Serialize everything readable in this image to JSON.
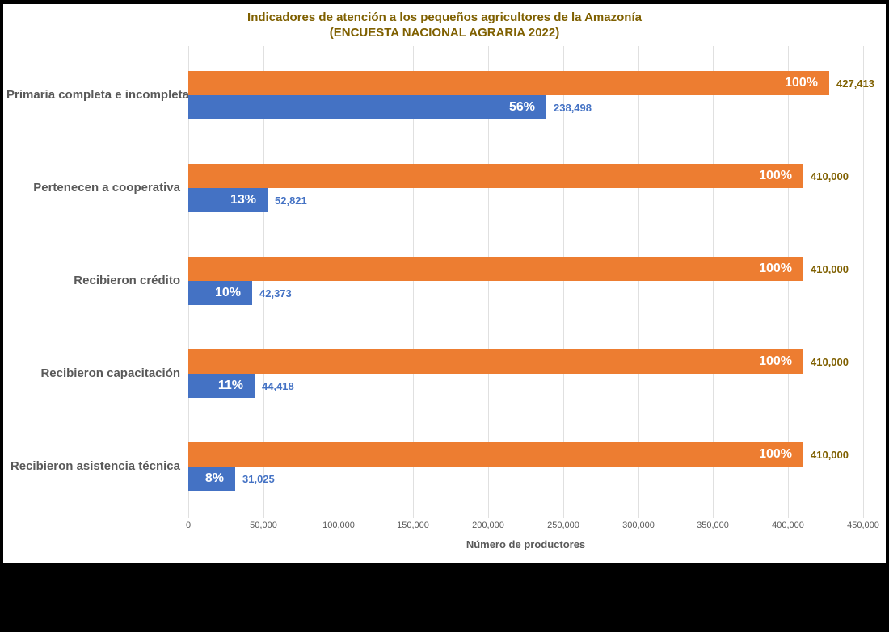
{
  "title": {
    "line1": "Indicadores de atención a los pequeños agricultores de la Amazonía",
    "line2": "(ENCUESTA NACIONAL AGRARIA 2022)"
  },
  "x_axis": {
    "label": "Número de productores",
    "tick_labels": [
      "0",
      "50,000",
      "100,000",
      "150,000",
      "200,000",
      "250,000",
      "300,000",
      "350,000",
      "400,000",
      "450,000"
    ]
  },
  "colors": {
    "background": "#000000",
    "panel": "#FFFFFF",
    "orange_bar": "#ED7D31",
    "blue_bar": "#4472C4",
    "title_text": "#7F6000",
    "orange_value_text": "#7F6000",
    "blue_value_text": "#4472C4",
    "category_text": "#595959",
    "axis_text": "#595959",
    "gridline": "#E0E0E0",
    "percent_text": "#FFFFFF"
  },
  "chart_data": {
    "type": "bar",
    "orientation": "horizontal",
    "title": "Indicadores de atención a los pequeños agricultores de la Amazonía (ENCUESTA NACIONAL AGRARIA 2022)",
    "xlabel": "Número de productores",
    "ylabel": "",
    "xlim": [
      0,
      450000
    ],
    "xticks": [
      0,
      50000,
      100000,
      150000,
      200000,
      250000,
      300000,
      350000,
      400000,
      450000
    ],
    "grid": true,
    "legend": false,
    "categories": [
      "Primaria completa e incompleta",
      "Pertenecen a cooperativa",
      "Recibieron crédito",
      "Recibieron capacitación",
      "Recibieron asistencia técnica"
    ],
    "series": [
      {
        "id": "orange",
        "color": "#ED7D31",
        "value_label_color": "#7F6000",
        "values": [
          427413,
          410000,
          410000,
          410000,
          410000
        ],
        "value_labels": [
          "427,413",
          "410,000",
          "410,000",
          "410,000",
          "410,000"
        ],
        "percent_labels": [
          "100%",
          "100%",
          "100%",
          "100%",
          "100%"
        ]
      },
      {
        "id": "blue",
        "color": "#4472C4",
        "value_label_color": "#4472C4",
        "values": [
          238498,
          52821,
          42373,
          44418,
          31025
        ],
        "value_labels": [
          "238,498",
          "52,821",
          "42,373",
          "44,418",
          "31,025"
        ],
        "percent_labels": [
          "56%",
          "13%",
          "10%",
          "11%",
          "8%"
        ]
      }
    ]
  }
}
